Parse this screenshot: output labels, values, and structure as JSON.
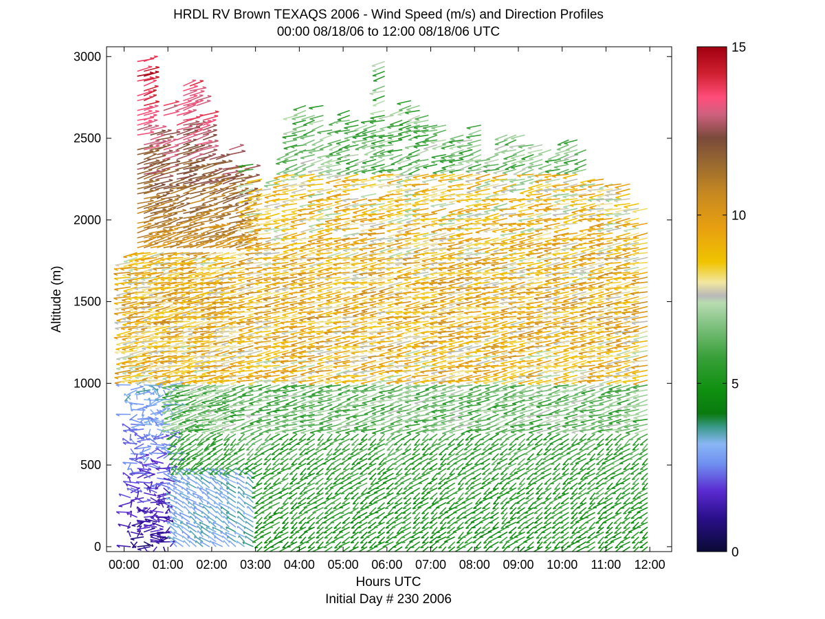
{
  "chart_data": {
    "type": "barbs",
    "title": "HRDL RV Brown TEXAQS 2006 - Wind Speed (m/s) and Direction Profiles",
    "subtitle": "00:00 08/18/06 to 12:00 08/18/06  UTC",
    "xlabel": "Hours UTC",
    "xlabel2": "Initial Day # 230  2006",
    "ylabel": "Altitude (m)",
    "xlim_hours": [
      -0.4,
      12.5
    ],
    "ylim": [
      -30,
      3060
    ],
    "x_ticks": [
      {
        "value": 0,
        "label": "00:00"
      },
      {
        "value": 1,
        "label": "01:00"
      },
      {
        "value": 2,
        "label": "02:00"
      },
      {
        "value": 3,
        "label": "03:00"
      },
      {
        "value": 4,
        "label": "04:00"
      },
      {
        "value": 5,
        "label": "05:00"
      },
      {
        "value": 6,
        "label": "06:00"
      },
      {
        "value": 7,
        "label": "07:00"
      },
      {
        "value": 8,
        "label": "08:00"
      },
      {
        "value": 9,
        "label": "09:00"
      },
      {
        "value": 10,
        "label": "10:00"
      },
      {
        "value": 11,
        "label": "11:00"
      },
      {
        "value": 12,
        "label": "12:00"
      }
    ],
    "y_ticks": [
      {
        "value": 0,
        "label": "0"
      },
      {
        "value": 500,
        "label": "500"
      },
      {
        "value": 1000,
        "label": "1000"
      },
      {
        "value": 1500,
        "label": "1500"
      },
      {
        "value": 2000,
        "label": "2000"
      },
      {
        "value": 2500,
        "label": "2500"
      },
      {
        "value": 3000,
        "label": "3000"
      }
    ],
    "colorbar": {
      "label_ticks": [
        {
          "value": 0,
          "label": "0"
        },
        {
          "value": 5,
          "label": "5"
        },
        {
          "value": 10,
          "label": "10"
        },
        {
          "value": 15,
          "label": "15"
        }
      ],
      "range": [
        0,
        15
      ],
      "stops": [
        {
          "v": 0.0,
          "c": "#0a0a35"
        },
        {
          "v": 1.0,
          "c": "#2a0f8a"
        },
        {
          "v": 1.8,
          "c": "#5a2ad0"
        },
        {
          "v": 2.6,
          "c": "#6f8ff0"
        },
        {
          "v": 3.2,
          "c": "#89b6f5"
        },
        {
          "v": 3.7,
          "c": "#3a9a8a"
        },
        {
          "v": 4.1,
          "c": "#0a7a10"
        },
        {
          "v": 4.8,
          "c": "#0f9010"
        },
        {
          "v": 5.8,
          "c": "#3aa03a"
        },
        {
          "v": 6.8,
          "c": "#86c486"
        },
        {
          "v": 7.4,
          "c": "#b9dcb0"
        },
        {
          "v": 7.6,
          "c": "#b8b8b8"
        },
        {
          "v": 8.0,
          "c": "#f2e7a0"
        },
        {
          "v": 8.6,
          "c": "#f0c400"
        },
        {
          "v": 9.6,
          "c": "#e8a010"
        },
        {
          "v": 10.6,
          "c": "#c88a20"
        },
        {
          "v": 11.5,
          "c": "#9a6a30"
        },
        {
          "v": 12.3,
          "c": "#7a4a3a"
        },
        {
          "v": 13.0,
          "c": "#d06080"
        },
        {
          "v": 13.5,
          "c": "#ff4d7a"
        },
        {
          "v": 14.2,
          "c": "#d02030"
        },
        {
          "v": 15.0,
          "c": "#a00010"
        }
      ]
    },
    "profiles": {
      "times_hours": [
        0.15,
        0.3,
        0.45,
        0.6,
        0.75,
        0.9,
        1.05,
        1.2,
        1.35,
        1.5,
        1.65,
        1.8,
        1.95,
        2.1,
        2.25,
        2.4,
        2.55,
        2.75,
        2.95,
        3.15,
        3.35,
        3.55,
        3.75,
        3.95,
        4.15,
        4.35,
        4.55,
        4.75,
        4.95,
        5.15,
        5.35,
        5.55,
        5.75,
        5.95,
        6.15,
        6.35,
        6.55,
        6.75,
        6.95,
        7.15,
        7.35,
        7.55,
        7.75,
        7.95,
        8.15,
        8.35,
        8.55,
        8.75,
        8.95,
        9.15,
        9.35,
        9.55,
        9.75,
        9.95,
        10.15,
        10.35,
        10.55,
        10.75,
        10.95,
        11.15,
        11.35,
        11.55,
        11.75,
        11.95
      ],
      "altitude_step_m": 30,
      "top_altitude_m": [
        1750,
        2980,
        2970,
        2560,
        2520,
        2700,
        2230,
        2750,
        2840,
        2840,
        2750,
        2640,
        2380,
        2380,
        2350,
        2450,
        2300,
        2330,
        2350,
        2260,
        2210,
        2260,
        2470,
        2650,
        2700,
        2670,
        2710,
        2630,
        2640,
        2690,
        2640,
        2600,
        2620,
        3000,
        2660,
        2690,
        2740,
        2710,
        2640,
        2600,
        2580,
        2500,
        2540,
        2500,
        2580,
        2380,
        2430,
        2540,
        2540,
        2540,
        2470,
        2480,
        2450,
        2400,
        2490,
        2500,
        2440,
        2300,
        2260,
        2230,
        2220,
        2260,
        2110,
        2080
      ],
      "low_level_regime": [
        {
          "max_alt_m": 1000,
          "times_hours": [
            0.1,
            1.2
          ],
          "direction": "variable",
          "speed_ms": [
            0.5,
            2.5
          ]
        },
        {
          "max_alt_m": 500,
          "times_hours": [
            1.2,
            3.0
          ],
          "direction": "from SE",
          "speed_ms": [
            2.5,
            3.5
          ]
        }
      ],
      "mid_layer": {
        "alt_m": [
          700,
          2300
        ],
        "speed_ms": [
          8,
          11
        ],
        "direction": "from NE"
      },
      "boundary_layer": {
        "alt_m": [
          0,
          700
        ],
        "speed_ms": [
          4,
          6
        ],
        "direction": "from N/NE"
      },
      "upper_early": {
        "alt_m": [
          1800,
          2900
        ],
        "times_hours": [
          0.2,
          2.8
        ],
        "speed_ms": [
          10,
          14
        ],
        "direction": "from SW"
      }
    }
  }
}
